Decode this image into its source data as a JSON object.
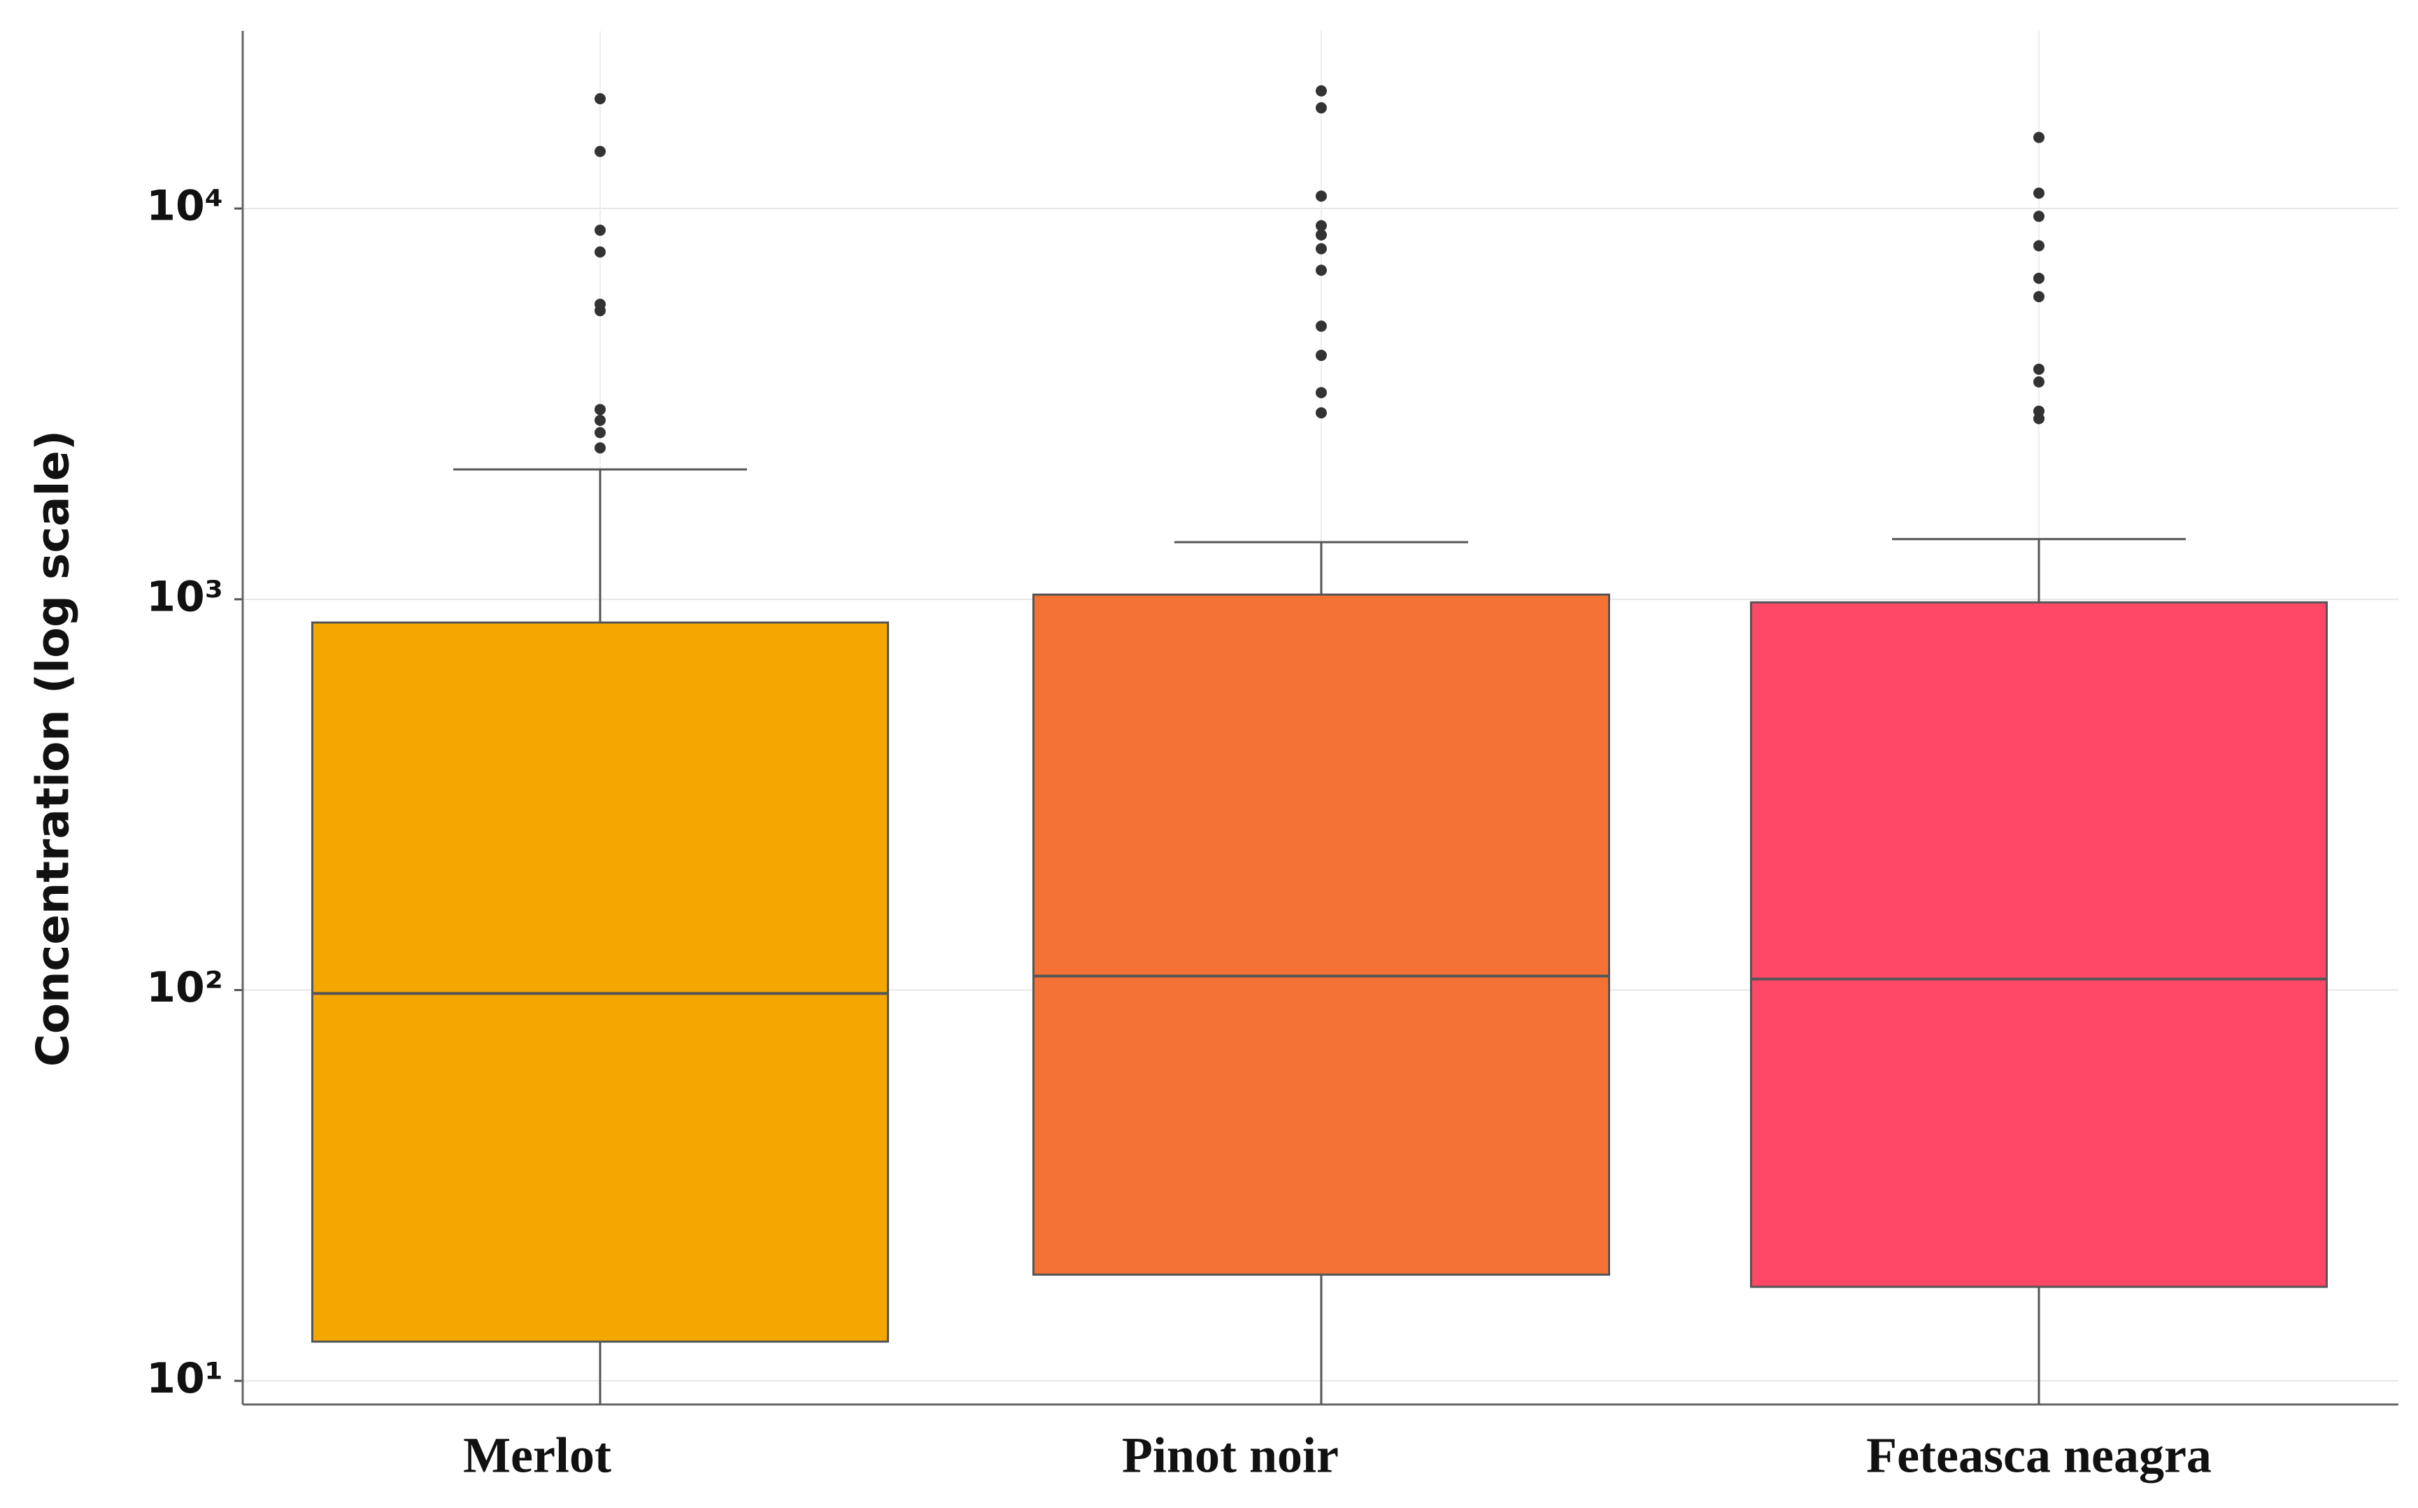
{
  "chart_data": {
    "type": "box",
    "y_label": "Concentration (log scale)",
    "y_scale": "log",
    "grid": true,
    "ylim": [
      8.7,
      28500
    ],
    "yticks": [
      {
        "value": 10,
        "label": "10¹"
      },
      {
        "value": 100,
        "label": "10²"
      },
      {
        "value": 1000,
        "label": "10³"
      },
      {
        "value": 10000,
        "label": "10⁴"
      }
    ],
    "categories": [
      "Merlot",
      "Pinot noir",
      "Feteasca neagra"
    ],
    "colors": [
      "#f4a700",
      "#f47334",
      "#ff4867"
    ],
    "boxes": [
      {
        "whislo": 8.7,
        "q1": 12.6,
        "med": 98,
        "q3": 872,
        "whishi": 2150,
        "fliers": [
          19100,
          14000,
          8800,
          7740,
          5690,
          5480,
          3060,
          2870,
          2670,
          2440
        ]
      },
      {
        "whislo": 8.7,
        "q1": 18.7,
        "med": 108.6,
        "q3": 1028,
        "whishi": 1400,
        "fliers": [
          20000,
          18100,
          10760,
          9040,
          8560,
          7890,
          6950,
          5000,
          4210,
          3380,
          3000
        ]
      },
      {
        "whislo": 8.7,
        "q1": 17.4,
        "med": 106.7,
        "q3": 982,
        "whishi": 1426,
        "fliers": [
          15200,
          10950,
          9550,
          8030,
          6630,
          5950,
          3880,
          3600,
          3030,
          2900
        ]
      }
    ]
  }
}
